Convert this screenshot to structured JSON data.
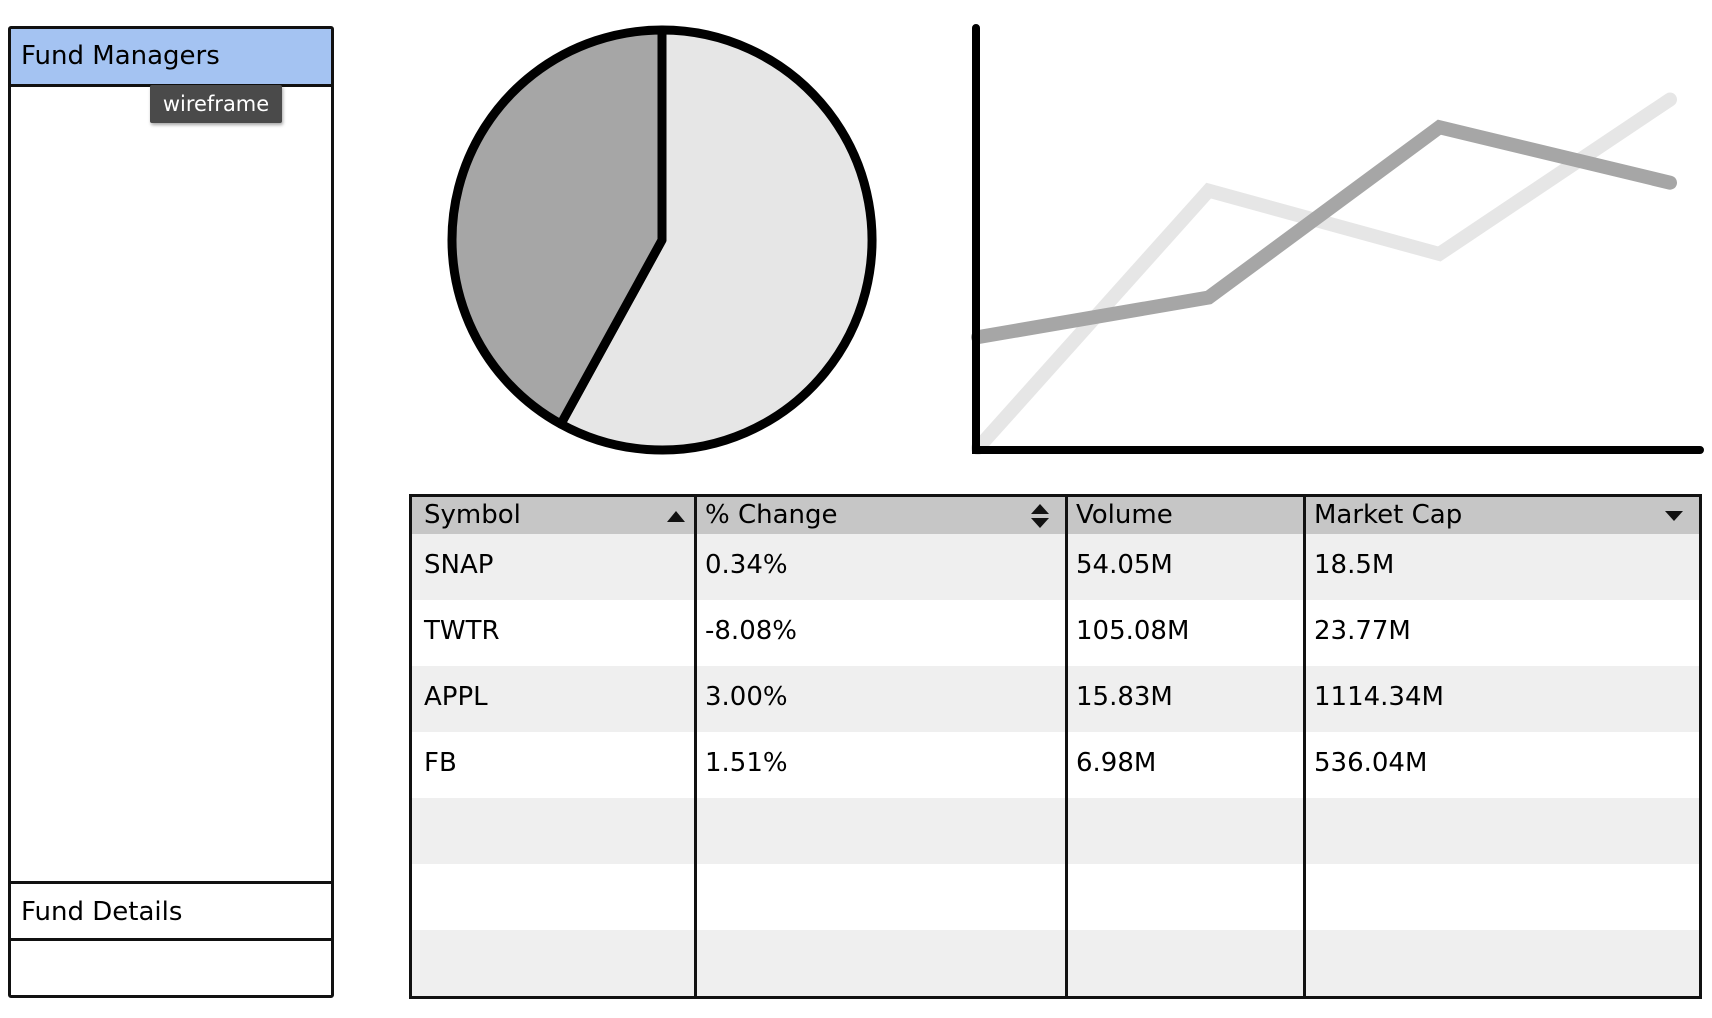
{
  "accordion": {
    "sections": [
      {
        "label": "Fund Managers",
        "expanded": true
      },
      {
        "label": "Fund Details",
        "expanded": false
      }
    ],
    "tooltip": "wireframe",
    "colors": {
      "active_header": "#a4c3f2"
    }
  },
  "pie_chart": {
    "chart_data": {
      "type": "pie",
      "slices": [
        {
          "value": 58,
          "color": "#e6e6e6"
        },
        {
          "value": 42,
          "color": "#a6a6a6"
        }
      ]
    }
  },
  "line_chart": {
    "chart_data": {
      "type": "line",
      "x": [
        0,
        1,
        2,
        3
      ],
      "series": [
        {
          "values": [
            0,
            65,
            49,
            88
          ],
          "color": "#e6e6e6"
        },
        {
          "values": [
            28,
            38,
            81,
            67
          ],
          "color": "#a6a6a6"
        }
      ],
      "ylim": [
        0,
        100
      ]
    }
  },
  "grid": {
    "columns": [
      {
        "label": "Symbol",
        "sort": "ascending"
      },
      {
        "label": "% Change",
        "sort": "sortable"
      },
      {
        "label": "Volume",
        "sort": "none"
      },
      {
        "label": "Market Cap",
        "sort": "descending"
      }
    ],
    "rows": [
      [
        "SNAP",
        "0.34%",
        "54.05M",
        "18.5M"
      ],
      [
        "TWTR",
        "-8.08%",
        "105.08M",
        "23.77M"
      ],
      [
        "APPL",
        "3.00%",
        "15.83M",
        "1114.34M"
      ],
      [
        "FB",
        "1.51%",
        "6.98M",
        "536.04M"
      ],
      [
        "",
        "",
        "",
        ""
      ],
      [
        "",
        "",
        "",
        ""
      ],
      [
        "",
        "",
        "",
        ""
      ]
    ],
    "colors": {
      "header": "#c6c6c6",
      "stripe": "#efefef"
    }
  }
}
